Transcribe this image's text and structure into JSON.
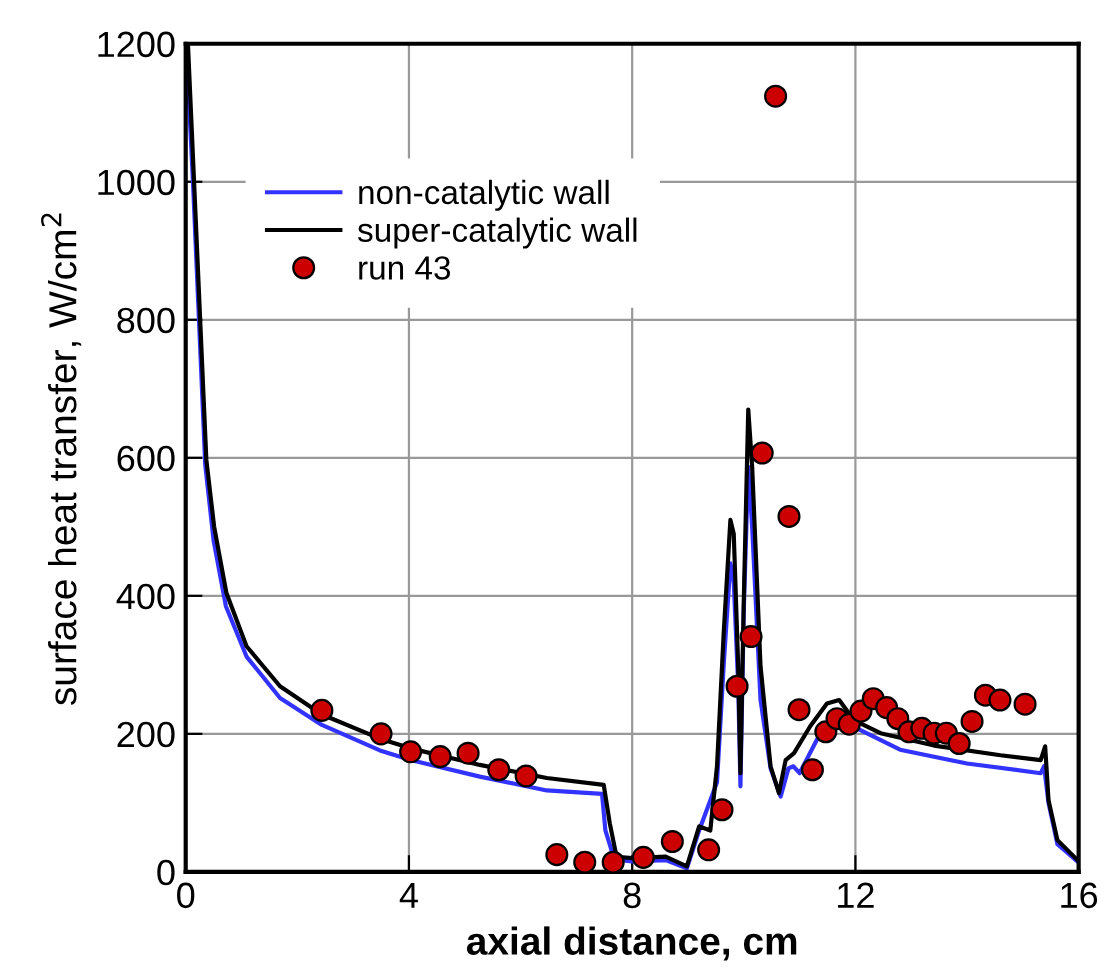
{
  "chart_data": {
    "type": "line",
    "xlabel": "axial distance, cm",
    "ylabel": "surface heat transfer, W/cm$^{2}$",
    "xlim": [
      0,
      16
    ],
    "ylim": [
      0,
      1200
    ],
    "xticks": [
      0,
      4,
      8,
      12,
      16
    ],
    "yticks": [
      0,
      200,
      400,
      600,
      800,
      1000,
      1200
    ],
    "grid": true,
    "legend": "top left",
    "series": [
      {
        "name": "non-catalytic wall",
        "type": "line",
        "color": "#3333ff",
        "marker": "none",
        "line_style": "solid",
        "x": [
          0.02,
          0.13,
          0.35,
          0.5,
          0.72,
          1.09,
          1.69,
          2.44,
          3.48,
          4.03,
          5.27,
          6.47,
          7.46,
          7.52,
          7.68,
          8.0,
          8.6,
          8.98,
          9.2,
          9.52,
          9.64,
          9.76,
          9.82,
          9.9,
          9.94,
          10.0,
          10.08,
          10.15,
          10.3,
          10.48,
          10.66,
          10.8,
          10.89,
          11.0,
          11.37,
          11.61,
          11.97,
          12.1,
          12.8,
          14.0,
          15.32,
          15.38,
          15.46,
          15.62,
          15.98
        ],
        "values": [
          1180,
          1000,
          590,
          480,
          385,
          312,
          252,
          213,
          176,
          162,
          138,
          118,
          113,
          60,
          18,
          15,
          17,
          5,
          60,
          130,
          300,
          447,
          420,
          270,
          124,
          380,
          587,
          500,
          249,
          150,
          109,
          150,
          153,
          143,
          201,
          220,
          210,
          205,
          177,
          157,
          143,
          153,
          100,
          40,
          15
        ]
      },
      {
        "name": "super-catalytic wall",
        "type": "line",
        "color": "#000000",
        "marker": "none",
        "line_style": "solid",
        "x": [
          0.04,
          0.15,
          0.37,
          0.51,
          0.73,
          1.09,
          1.69,
          2.44,
          3.48,
          4.03,
          5.27,
          6.47,
          7.49,
          7.6,
          7.72,
          8.0,
          8.6,
          8.98,
          9.2,
          9.4,
          9.52,
          9.64,
          9.76,
          9.82,
          9.9,
          9.94,
          10.0,
          10.08,
          10.15,
          10.3,
          10.48,
          10.63,
          10.75,
          10.9,
          11.19,
          11.49,
          11.71,
          11.97,
          12.45,
          13.41,
          14.6,
          15.32,
          15.4,
          15.46,
          15.62,
          15.98
        ],
        "values": [
          1200,
          1000,
          597,
          500,
          404,
          327,
          269,
          228,
          193,
          179,
          155,
          136,
          126,
          70,
          22,
          20,
          22,
          8,
          66,
          60,
          153,
          346,
          510,
          490,
          298,
          143,
          394,
          670,
          587,
          298,
          153,
          114,
          162,
          172,
          211,
          244,
          249,
          220,
          201,
          183,
          169,
          162,
          182,
          104,
          46,
          17
        ]
      },
      {
        "name": "run 43",
        "type": "scatter",
        "color": "#cc0000",
        "marker": "circle",
        "x": [
          2.44,
          3.5,
          4.03,
          4.56,
          5.06,
          5.61,
          6.1,
          6.65,
          7.15,
          7.66,
          8.2,
          8.72,
          9.37,
          9.61,
          9.88,
          10.13,
          10.33,
          10.57,
          10.81,
          10.99,
          11.23,
          11.47,
          11.67,
          11.89,
          12.1,
          12.32,
          12.56,
          12.76,
          12.96,
          13.19,
          13.41,
          13.63,
          13.86,
          14.09,
          14.33,
          14.59,
          15.04
        ],
        "values": [
          234,
          200,
          174,
          167,
          172,
          148,
          139,
          25,
          14,
          14,
          21,
          44,
          32,
          90,
          269,
          341,
          607,
          1124,
          515,
          235,
          148,
          203,
          222,
          214,
          233,
          251,
          238,
          222,
          203,
          208,
          201,
          201,
          186,
          218,
          256,
          249,
          243
        ]
      }
    ]
  }
}
